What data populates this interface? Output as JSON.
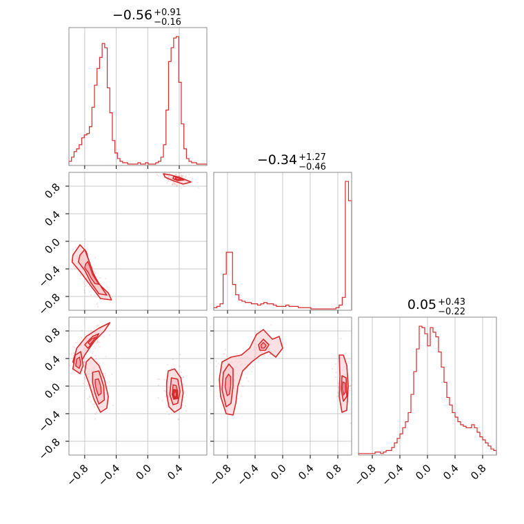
{
  "chart_data": {
    "type": "corner",
    "color": "#d62728",
    "fill_color": "#f7c9cc",
    "grid": true,
    "ticks": [
      -0.8,
      -0.4,
      0.0,
      0.4,
      0.8
    ],
    "tick_labels": [
      "−0.8",
      "−0.4",
      "0.0",
      "0.4",
      "0.8"
    ],
    "params": [
      {
        "title": {
          "main": "−0.56",
          "plus": "+0.91",
          "minus": "−0.16"
        },
        "range": [
          -1.0,
          0.75
        ],
        "hist": [
          3,
          6,
          10,
          12,
          15,
          20,
          22,
          23,
          28,
          42,
          58,
          70,
          78,
          88,
          85,
          56,
          38,
          18,
          9,
          5,
          3,
          2,
          2,
          1,
          1,
          1,
          1,
          2,
          1,
          1,
          2,
          1,
          1,
          1,
          2,
          3,
          6,
          15,
          40,
          75,
          85,
          92,
          93,
          60,
          30,
          12,
          5,
          3,
          2,
          2,
          1,
          1,
          1,
          1
        ]
      },
      {
        "title": {
          "main": "−0.34",
          "plus": "+1.27",
          "minus": "−0.46"
        },
        "range": [
          -1.0,
          1.0
        ],
        "hist": [
          2,
          3,
          5,
          28,
          45,
          45,
          20,
          12,
          8,
          7,
          6,
          6,
          5,
          5,
          4,
          5,
          6,
          5,
          5,
          4,
          3,
          3,
          3,
          4,
          3,
          3,
          3,
          2,
          2,
          2,
          2,
          1,
          1,
          1,
          1,
          1,
          1,
          1,
          1,
          2,
          4,
          10,
          100,
          85
        ]
      },
      {
        "title": {
          "main": "0.05",
          "plus": "+0.43",
          "minus": "−0.22"
        },
        "range": [
          -1.0,
          1.0
        ],
        "hist": [
          1,
          1,
          1,
          1,
          1,
          1,
          2,
          2,
          1,
          2,
          3,
          3,
          5,
          8,
          11,
          14,
          18,
          22,
          28,
          40,
          55,
          70,
          85,
          84,
          80,
          72,
          84,
          81,
          78,
          68,
          58,
          48,
          38,
          33,
          28,
          25,
          22,
          20,
          19,
          18,
          18,
          20,
          18,
          15,
          12,
          10,
          8,
          6,
          4,
          3
        ]
      }
    ],
    "pairs": [
      {
        "x": 0,
        "y": 1,
        "blobs": [
          {
            "points": [
              [
                -0.95,
                -0.2
              ],
              [
                -0.86,
                -0.05
              ],
              [
                -0.78,
                -0.15
              ],
              [
                -0.72,
                -0.4
              ],
              [
                -0.62,
                -0.62
              ],
              [
                -0.5,
                -0.75
              ],
              [
                -0.46,
                -0.85
              ],
              [
                -0.6,
                -0.83
              ],
              [
                -0.72,
                -0.65
              ],
              [
                -0.85,
                -0.45
              ],
              [
                -0.96,
                -0.3
              ]
            ],
            "level": 1
          },
          {
            "points": [
              [
                -0.86,
                -0.2
              ],
              [
                -0.8,
                -0.12
              ],
              [
                -0.74,
                -0.3
              ],
              [
                -0.68,
                -0.5
              ],
              [
                -0.58,
                -0.68
              ],
              [
                -0.52,
                -0.78
              ],
              [
                -0.62,
                -0.76
              ],
              [
                -0.72,
                -0.6
              ],
              [
                -0.8,
                -0.42
              ],
              [
                -0.88,
                -0.3
              ]
            ],
            "level": 2
          },
          {
            "points": [
              [
                0.2,
                0.98
              ],
              [
                0.3,
                0.96
              ],
              [
                0.42,
                0.92
              ],
              [
                0.55,
                0.86
              ],
              [
                0.45,
                0.83
              ],
              [
                0.32,
                0.88
              ],
              [
                0.22,
                0.93
              ]
            ],
            "level": 1
          },
          {
            "points": [
              [
                0.33,
                0.94
              ],
              [
                0.4,
                0.93
              ],
              [
                0.46,
                0.89
              ],
              [
                0.38,
                0.88
              ],
              [
                0.32,
                0.91
              ]
            ],
            "level": 2
          }
        ]
      },
      {
        "x": 0,
        "y": 2,
        "blobs": [
          {
            "points": [
              [
                -0.95,
                0.35
              ],
              [
                -0.9,
                0.55
              ],
              [
                -0.78,
                0.72
              ],
              [
                -0.62,
                0.84
              ],
              [
                -0.48,
                0.92
              ],
              [
                -0.55,
                0.8
              ],
              [
                -0.68,
                0.65
              ],
              [
                -0.8,
                0.45
              ],
              [
                -0.88,
                0.28
              ]
            ],
            "level": 1
          },
          {
            "points": [
              [
                -0.95,
                0.25
              ],
              [
                -0.92,
                0.45
              ],
              [
                -0.85,
                0.5
              ],
              [
                -0.82,
                0.3
              ],
              [
                -0.86,
                0.18
              ]
            ],
            "level": 2
          },
          {
            "points": [
              [
                -0.8,
                0.6
              ],
              [
                -0.7,
                0.72
              ],
              [
                -0.62,
                0.76
              ],
              [
                -0.68,
                0.65
              ],
              [
                -0.76,
                0.55
              ]
            ],
            "level": 2
          },
          {
            "points": [
              [
                -0.78,
                0.35
              ],
              [
                -0.72,
                0.42
              ],
              [
                -0.62,
                0.3
              ],
              [
                -0.55,
                0.1
              ],
              [
                -0.5,
                -0.15
              ],
              [
                -0.52,
                -0.32
              ],
              [
                -0.6,
                -0.38
              ],
              [
                -0.68,
                -0.2
              ],
              [
                -0.75,
                0.05
              ],
              [
                -0.8,
                0.2
              ]
            ],
            "level": 1
          },
          {
            "points": [
              [
                -0.7,
                0.2
              ],
              [
                -0.62,
                0.22
              ],
              [
                -0.56,
                0.0
              ],
              [
                -0.55,
                -0.2
              ],
              [
                -0.62,
                -0.26
              ],
              [
                -0.67,
                -0.1
              ],
              [
                -0.7,
                0.05
              ]
            ],
            "level": 2
          },
          {
            "points": [
              [
                0.26,
                0.22
              ],
              [
                0.34,
                0.25
              ],
              [
                0.42,
                0.12
              ],
              [
                0.45,
                -0.1
              ],
              [
                0.42,
                -0.32
              ],
              [
                0.34,
                -0.38
              ],
              [
                0.27,
                -0.3
              ],
              [
                0.24,
                -0.12
              ],
              [
                0.24,
                0.05
              ]
            ],
            "level": 1
          },
          {
            "points": [
              [
                0.3,
                0.12
              ],
              [
                0.38,
                0.1
              ],
              [
                0.41,
                -0.08
              ],
              [
                0.38,
                -0.25
              ],
              [
                0.32,
                -0.27
              ],
              [
                0.28,
                -0.12
              ]
            ],
            "level": 2
          },
          {
            "points": [
              [
                0.33,
                -0.05
              ],
              [
                0.38,
                -0.06
              ],
              [
                0.38,
                -0.18
              ],
              [
                0.33,
                -0.19
              ],
              [
                0.31,
                -0.12
              ]
            ],
            "level": 3
          }
        ]
      },
      {
        "x": 1,
        "y": 2,
        "blobs": [
          {
            "points": [
              [
                -0.88,
                0.35
              ],
              [
                -0.75,
                0.42
              ],
              [
                -0.6,
                0.45
              ],
              [
                -0.48,
                0.55
              ],
              [
                -0.38,
                0.75
              ],
              [
                -0.28,
                0.82
              ],
              [
                -0.15,
                0.68
              ],
              [
                -0.05,
                0.72
              ],
              [
                0.0,
                0.55
              ],
              [
                -0.1,
                0.42
              ],
              [
                -0.2,
                0.5
              ],
              [
                -0.32,
                0.45
              ],
              [
                -0.45,
                0.35
              ],
              [
                -0.58,
                0.22
              ],
              [
                -0.65,
                0.0
              ],
              [
                -0.68,
                -0.25
              ],
              [
                -0.72,
                -0.42
              ],
              [
                -0.82,
                -0.4
              ],
              [
                -0.9,
                -0.15
              ],
              [
                -0.92,
                0.1
              ]
            ],
            "level": 1
          },
          {
            "points": [
              [
                -0.86,
                0.2
              ],
              [
                -0.78,
                0.32
              ],
              [
                -0.72,
                0.25
              ],
              [
                -0.72,
                0.0
              ],
              [
                -0.75,
                -0.25
              ],
              [
                -0.82,
                -0.3
              ],
              [
                -0.88,
                -0.05
              ]
            ],
            "level": 2
          },
          {
            "points": [
              [
                -0.35,
                0.6
              ],
              [
                -0.28,
                0.68
              ],
              [
                -0.2,
                0.6
              ],
              [
                -0.25,
                0.52
              ],
              [
                -0.33,
                0.52
              ]
            ],
            "level": 2
          },
          {
            "points": [
              [
                0.82,
                0.45
              ],
              [
                0.88,
                0.45
              ],
              [
                0.93,
                0.3
              ],
              [
                0.95,
                0.0
              ],
              [
                0.93,
                -0.35
              ],
              [
                0.86,
                -0.38
              ],
              [
                0.82,
                -0.15
              ],
              [
                0.83,
                0.15
              ]
            ],
            "level": 1
          },
          {
            "points": [
              [
                0.86,
                0.15
              ],
              [
                0.92,
                0.12
              ],
              [
                0.93,
                -0.15
              ],
              [
                0.88,
                -0.22
              ],
              [
                0.85,
                -0.05
              ]
            ],
            "level": 2
          }
        ]
      }
    ]
  }
}
